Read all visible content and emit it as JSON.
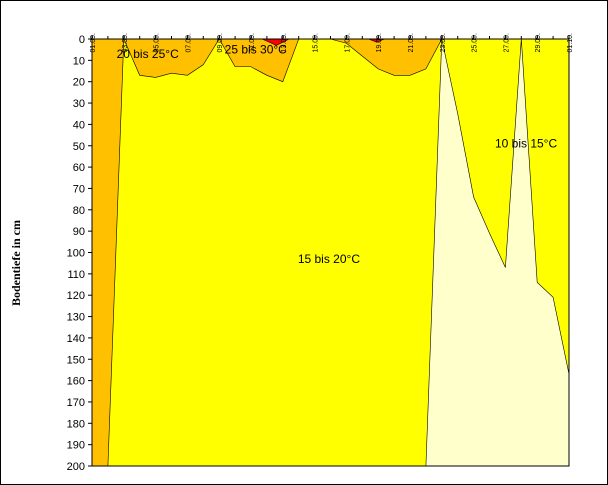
{
  "chart_data": {
    "type": "area",
    "ylabel": "Bodentiefe in cm",
    "xlabel": "",
    "x_tick_labels": [
      "01.09.",
      "03.09.",
      "05.09.",
      "07.09.",
      "09.09.",
      "11.09.",
      "13.09.",
      "15.09.",
      "17.09.",
      "19.09.",
      "21.09.",
      "23.09.",
      "25.09.",
      "27.09.",
      "29.09.",
      "01.10."
    ],
    "xlim": [
      0,
      30
    ],
    "y_ticks": [
      0,
      10,
      20,
      30,
      40,
      50,
      60,
      70,
      80,
      90,
      100,
      110,
      120,
      130,
      140,
      150,
      160,
      170,
      180,
      190,
      200
    ],
    "ylim": [
      0,
      200
    ],
    "y_inverted": true,
    "grid": false,
    "colors": {
      "10 bis 15°C": "#FFFFCC",
      "15 bis 20°C": "#FFFF00",
      "20 bis 25°C": "#FFC000",
      "25 bis 30°C": "#FF0000"
    },
    "zone_labels": [
      {
        "text": "20 bis 25°C",
        "x": 3.5,
        "y": 7
      },
      {
        "text": "25 bis 30°C",
        "x": 10.3,
        "y": 5
      },
      {
        "text": "15 bis 20°C",
        "x": 14.9,
        "y": 103
      },
      {
        "text": "10 bis 15°C",
        "x": 27.3,
        "y": 49
      }
    ],
    "boundary_20C": {
      "x": [
        0,
        1,
        2,
        3,
        4,
        5,
        6,
        7,
        8,
        9,
        10,
        11,
        12,
        13,
        14,
        15,
        16,
        17,
        18,
        19,
        20,
        21,
        22,
        23,
        24,
        25,
        26,
        27,
        28,
        29,
        30
      ],
      "depth": [
        200,
        200,
        0,
        17,
        18,
        16,
        17,
        12,
        0,
        13,
        13,
        17,
        20,
        0,
        0,
        0,
        2,
        8,
        14,
        17,
        17,
        14,
        0,
        0,
        0,
        0,
        0,
        0,
        0,
        0,
        0
      ]
    },
    "boundary_15C": {
      "x": [
        0,
        1,
        2,
        3,
        4,
        5,
        6,
        7,
        8,
        9,
        10,
        11,
        12,
        13,
        14,
        15,
        16,
        17,
        18,
        19,
        20,
        21,
        22,
        23,
        24,
        25,
        26,
        27,
        28,
        29,
        30
      ],
      "depth": [
        200,
        200,
        200,
        200,
        200,
        200,
        200,
        200,
        200,
        200,
        200,
        200,
        200,
        200,
        200,
        200,
        200,
        200,
        200,
        200,
        200,
        200,
        0,
        35,
        74,
        91,
        107,
        0,
        114,
        121,
        157
      ]
    },
    "zone_25_30": [
      {
        "x": [
          10.7,
          11.6,
          12.4
        ],
        "depth": [
          0,
          3,
          0
        ]
      },
      {
        "x": [
          17.4,
          17.9,
          18.4
        ],
        "depth": [
          0,
          1.5,
          0
        ]
      }
    ]
  }
}
